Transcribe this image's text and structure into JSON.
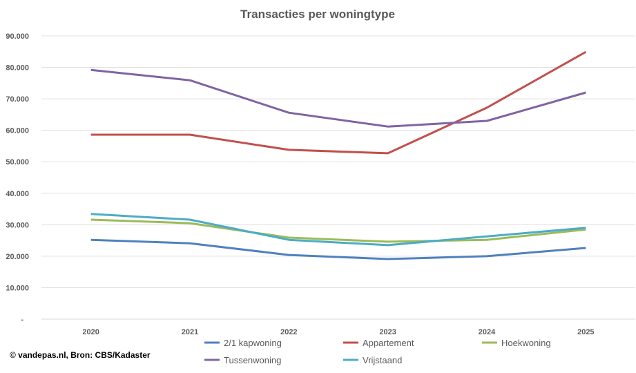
{
  "chart_data": {
    "type": "line",
    "title": "Transacties per woningtype",
    "xlabel": "",
    "ylabel": "",
    "categories": [
      "2020",
      "2021",
      "2022",
      "2023",
      "2024",
      "2025"
    ],
    "ylim": [
      0,
      90000
    ],
    "yticks": [
      "-",
      "10.000",
      "20.000",
      "30.000",
      "40.000",
      "50.000",
      "60.000",
      "70.000",
      "80.000",
      "90.000"
    ],
    "grid": true,
    "legend_position": "bottom",
    "series": [
      {
        "name": "2/1 kapwoning",
        "color": "#4F81BD",
        "values": [
          25200,
          24100,
          20400,
          19100,
          20000,
          22600
        ]
      },
      {
        "name": "Appartement",
        "color": "#C0504D",
        "values": [
          58600,
          58600,
          53800,
          52700,
          67200,
          84900
        ]
      },
      {
        "name": "Hoekwoning",
        "color": "#9BBB59",
        "values": [
          31600,
          30500,
          25900,
          24600,
          25200,
          28500
        ]
      },
      {
        "name": "Tussenwoning",
        "color": "#8064A2",
        "values": [
          79200,
          75900,
          65600,
          61200,
          63000,
          72000
        ]
      },
      {
        "name": "Vrijstaand",
        "color": "#4BACC6",
        "values": [
          33400,
          31600,
          25200,
          23500,
          26300,
          29000
        ]
      }
    ]
  },
  "credit": "© vandepas.nl, Bron: CBS/Kadaster"
}
